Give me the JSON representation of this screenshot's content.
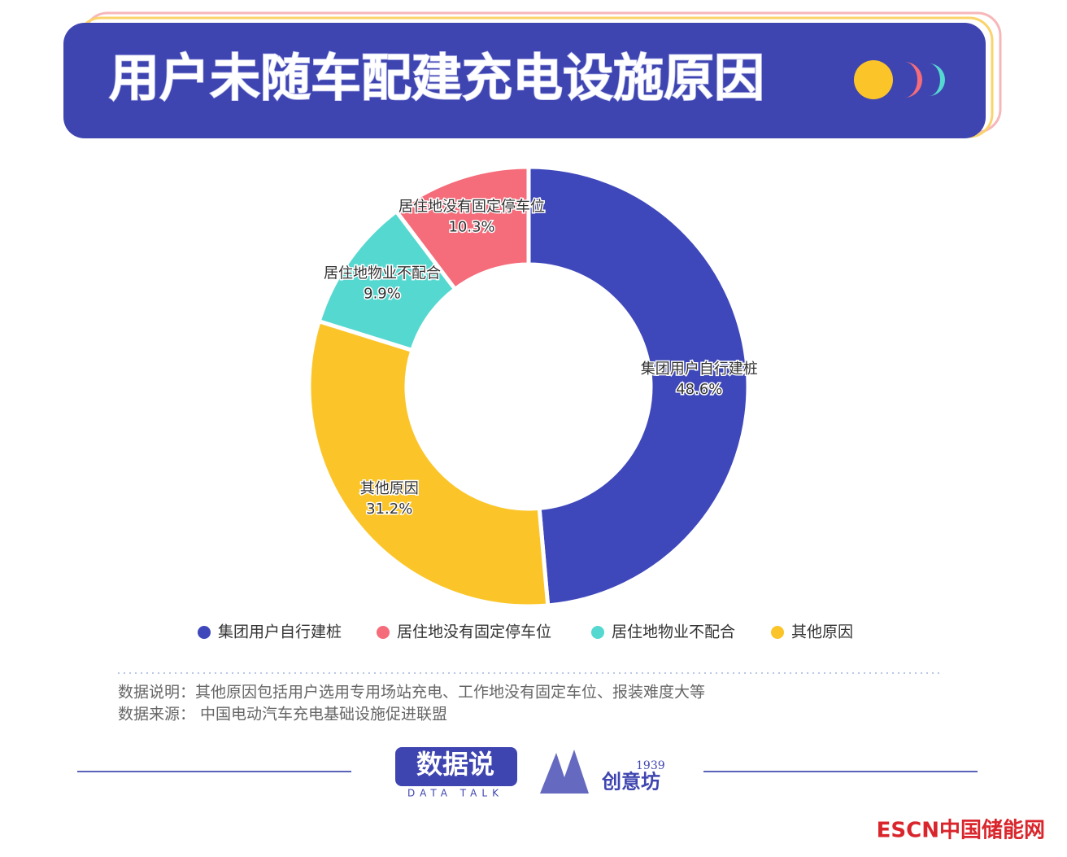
{
  "header": {
    "title": "用户未随车配建充电设施原因"
  },
  "chart_data": {
    "type": "donut",
    "categories": [
      "集团用户自行建桩",
      "居住地没有固定停车位",
      "居住地物业不配合",
      "其他原因"
    ],
    "values": [
      48.6,
      10.3,
      9.9,
      31.2
    ],
    "value_labels": [
      "48.6%",
      "10.3%",
      "9.9%",
      "31.2%"
    ],
    "colors": [
      "#3f48bb",
      "#f56c7a",
      "#55d8d0",
      "#fbc52a"
    ]
  },
  "notes": [
    "数据说明：其他原因包括用户选用专用场站充电、工作地没有固定车位、报装难度大等",
    "数据来源：  中国电动汽车充电基础设施促进联盟"
  ],
  "footer": {
    "brand": "数据说",
    "brand_sub": "DATA TALK",
    "partner_year": "1939",
    "partner": "创意坊",
    "watermark": "ESCN中国储能网"
  }
}
